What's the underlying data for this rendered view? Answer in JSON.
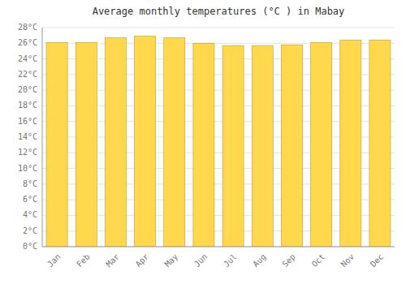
{
  "chart_data": {
    "type": "bar",
    "title": "Average monthly temperatures (°C ) in Mabay",
    "categories": [
      "Jan",
      "Feb",
      "Mar",
      "Apr",
      "May",
      "Jun",
      "Jul",
      "Aug",
      "Sep",
      "Oct",
      "Nov",
      "Dec"
    ],
    "values": [
      26.1,
      26.1,
      26.7,
      26.9,
      26.7,
      26.0,
      25.7,
      25.7,
      25.8,
      26.1,
      26.4,
      26.4
    ],
    "color": "#FFD84D",
    "ylim": [
      0,
      28
    ],
    "yticks": [
      {
        "value": 0,
        "label": "0°C"
      },
      {
        "value": 2,
        "label": "2°C"
      },
      {
        "value": 4,
        "label": "4°C"
      },
      {
        "value": 6,
        "label": "6°C"
      },
      {
        "value": 8,
        "label": "8°C"
      },
      {
        "value": 10,
        "label": "10°C"
      },
      {
        "value": 12,
        "label": "12°C"
      },
      {
        "value": 14,
        "label": "14°C"
      },
      {
        "value": 16,
        "label": "16°C"
      },
      {
        "value": 18,
        "label": "18°C"
      },
      {
        "value": 20,
        "label": "20°C"
      },
      {
        "value": 22,
        "label": "22°C"
      },
      {
        "value": 24,
        "label": "24°C"
      },
      {
        "value": 26,
        "label": "26°C"
      },
      {
        "value": 28,
        "label": "28°C"
      }
    ],
    "grid": true
  }
}
